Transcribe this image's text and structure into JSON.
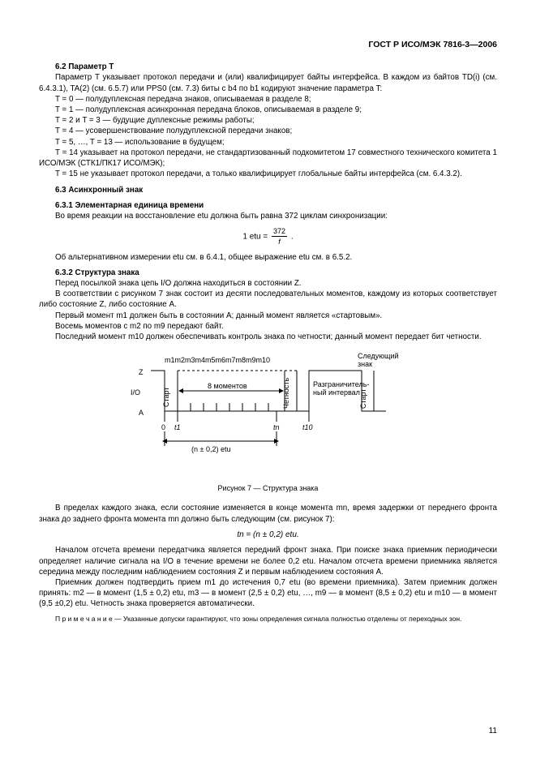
{
  "header": "ГОСТ Р ИСО/МЭК 7816-3—2006",
  "section62_title": "6.2  Параметр T",
  "p1": "Параметр T указывает протокол передачи и (или) квалифицирует байты интерфейса. В каждом из байтов TD(i) (см. 6.4.3.1), TA(2) (см. 6.5.7) или PPS0 (см. 7.3) биты с b4 по b1 кодируют значение параметра T:",
  "li1": "T = 0 — полудуплексная передача знаков, описываемая в разделе 8;",
  "li2": "T = 1 — полудуплексная асинхронная передача блоков, описываемая в разделе 9;",
  "li3": "T = 2 и T = 3 — будущие дуплексные режимы работы;",
  "li4": "T = 4 — усовершенствование полудуплексной передачи знаков;",
  "li5": "T = 5, …, T = 13 — использование в будущем;",
  "li6": "T = 14 указывает на протокол передачи, не стандартизованный подкомитетом 17 совместного технического комитета 1 ИСО/МЭК (СТК1/ПК17 ИСО/МЭК);",
  "li7": "T = 15 не указывает протокол передачи, а только квалифицирует глобальные байты интерфейса (см. 6.4.3.2).",
  "section63_title": "6.3  Асинхронный знак",
  "section631_title": "6.3.1  Элементарная единица времени",
  "p2": "Во время реакции на восстановление etu должна быть равна 372 циклам синхронизации:",
  "formula1_pre": "1 etu = ",
  "formula1_num": "372",
  "formula1_den": "f",
  "formula1_post": " .",
  "p3": "Об альтернативном измерении etu см. в 6.4.1, общее выражение etu см. в 6.5.2.",
  "section632_title": "6.3.2  Структура знака",
  "p4": "Перед посылкой знака цепь I/O должна находиться в состоянии Z.",
  "p5": "В соответствии с рисунком 7 знак состоит из десяти последовательных моментов, каждому из которых соответствует либо состояние Z, либо состояние A.",
  "p6": "Первый момент m1 должен быть в состоянии A; данный момент является «стартовым».",
  "p7": "Восемь моментов с m2 по m9 передают байт.",
  "p8": "Последний момент m10 должен обеспечивать контроль знака по четности; данный момент передает бит четности.",
  "diagram": {
    "z_label": "Z",
    "io_label": "I/O",
    "a_label": "A",
    "m_labels": "m1m2m3m4m5m6m7m8m9m10",
    "next_sign": "Следующий\nзнак",
    "start1": "Старт",
    "eight_moments": "8 моментов",
    "parity": "Четность",
    "delimiter": "Разграничитель-\nный интервал",
    "start2": "Старт",
    "zero": "0",
    "t1": "t1",
    "tn": "tn",
    "t10": "t10",
    "range": "(n ± 0,2) etu"
  },
  "caption": "Рисунок 7 — Структура знака",
  "p9": "В пределах каждого знака, если состояние изменяется в конце момента mn, время задержки от переднего фронта знака до заднего фронта момента mn должно быть следующим (см. рисунок 7):",
  "formula2": "tn = (n ± 0,2) etu.",
  "p10": "Началом отсчета времени передатчика является передний фронт знака. При поиске знака приемник периодически определяет наличие сигнала на I/O в течение времени не более 0,2 etu. Началом отсчета времени приемника является середина между последним наблюдением состояния Z и первым наблюдением состояния A.",
  "p11": "Приемник должен подтвердить прием m1 до истечения 0,7 etu (во времени приемника). Затем приемник должен принять: m2 — в момент (1,5 ± 0,2) etu, m3 — в момент (2,5 ± 0,2) etu, …, m9 — в момент (8,5 ± 0,2) etu и m10 — в момент (9,5 ±0,2) etu. Четность знака проверяется автоматически.",
  "note": "П р и м е ч а н и е — Указанные допуски гарантируют, что зоны определения сигнала полностью отделены от переходных зон.",
  "pagenum": "11"
}
